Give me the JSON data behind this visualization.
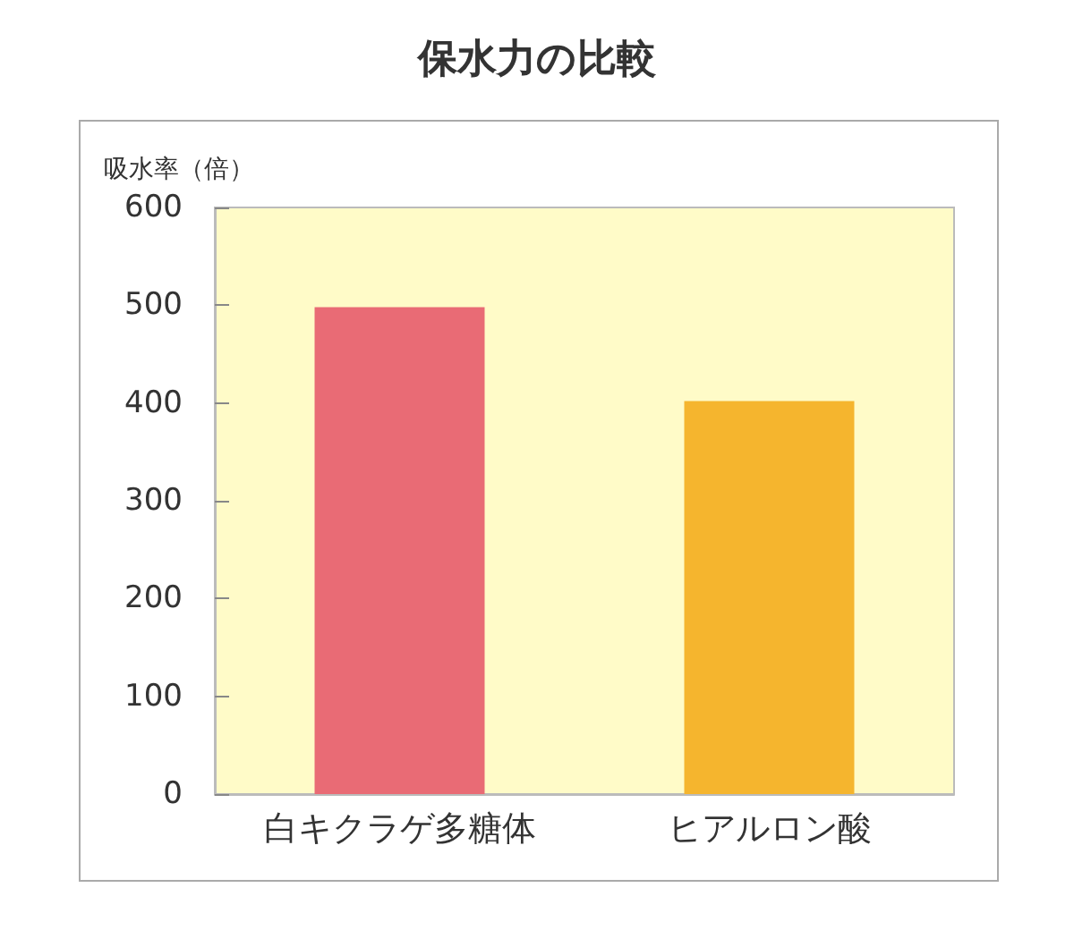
{
  "chart_data": {
    "type": "bar",
    "title": "保水力の比較",
    "ylabel": "吸水率（倍）",
    "categories": [
      "白キクラゲ多糖体",
      "ヒアルロン酸"
    ],
    "values": [
      498,
      402
    ],
    "colors": [
      "#e96b75",
      "#f5b52e"
    ],
    "ylim": [
      0,
      600
    ],
    "yticks": [
      0,
      100,
      200,
      300,
      400,
      500,
      600
    ],
    "grid": false
  }
}
